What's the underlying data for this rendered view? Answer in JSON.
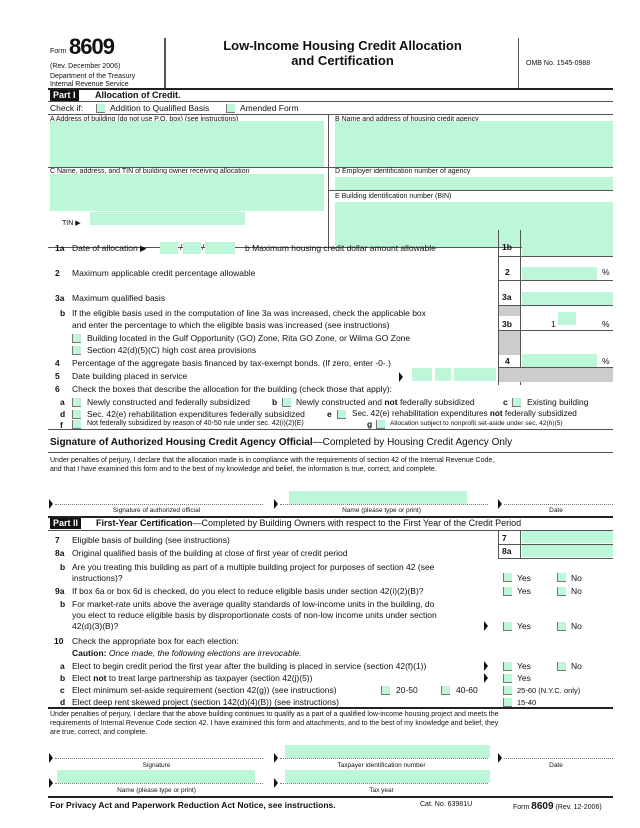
{
  "header": {
    "form_word": "Form",
    "form_number": "8609",
    "rev": "(Rev. December 2006)",
    "dept": "Department of the Treasury",
    "irs": "Internal Revenue Service",
    "title_line1": "Low-Income Housing Credit Allocation",
    "title_line2": "and Certification",
    "omb": "OMB No. 1545-0988"
  },
  "part1": {
    "tag": "Part I",
    "title": "Allocation of Credit.",
    "check_if": "Check if:",
    "check1": "Addition to Qualified Basis",
    "check2": "Amended Form",
    "A": "A  Address of building (do not use P.O. box) (see instructions)",
    "B": "B  Name and address of housing credit agency",
    "C": "C  Name, address, and TIN of building owner receiving allocation",
    "D": "D  Employer identification number of agency",
    "E": "E  Building identification number (BIN)",
    "tin": "TIN ▶",
    "l1a": "1a",
    "l1a_text": "Date of allocation ▶",
    "date_sep": "/",
    "l1b_text": "b  Maximum housing credit dollar amount allowable",
    "l1b": "1b",
    "l2": "2",
    "l2_text": "Maximum applicable credit percentage allowable",
    "pct": "%",
    "l3a": "3a",
    "l3a_text": "Maximum qualified basis",
    "l3b": "b",
    "l3b_text1": "If the eligible basis used in the computation of line 3a was increased, check the applicable box",
    "l3b_text2": "and enter the percentage to which the eligible basis was increased (see instructions)",
    "l3b_box": "3b",
    "l3b_prefix": "1",
    "l3b_opt1": "Building located in the Gulf Opportunity (GO) Zone, Rita GO Zone, or Wilma GO Zone",
    "l3b_opt2": "Section 42(d)(5)(C) high cost area provisions",
    "l4": "4",
    "l4_text": "Percentage of the aggregate basis financed by tax-exempt bonds. (If zero, enter -0-.)",
    "l5": "5",
    "l5_text": "Date building placed in service",
    "l6": "6",
    "l6_text": "Check the boxes that describe the allocation for the building (check those that apply):",
    "l6a": "Newly constructed and federally subsidized",
    "l6b_pre": "Newly constructed and ",
    "l6b_bold": "not",
    "l6b_post": " federally subsidized",
    "l6c": "Existing building",
    "l6d": "Sec. 42(e) rehabilitation expenditures federally subsidized",
    "l6e_pre": "Sec. 42(e) rehabilitation expenditures ",
    "l6e_bold": "not",
    "l6e_post": " federally subsidized",
    "l6f": "Not federally subsidized by reason of 40-50 rule under sec. 42(i)(2)(E)",
    "l6g": "Allocation subject to nonprofit set-aside under sec. 42(h)(5)",
    "letters": [
      "a",
      "b",
      "c",
      "d",
      "e",
      "f",
      "g"
    ]
  },
  "agency_sig": {
    "heading_bold": "Signature of Authorized Housing Credit Agency Official",
    "heading_rest": "—Completed by Housing Credit Agency Only",
    "perjury1": "Under penalties of perjury, I declare that the allocation made is in compliance with the requirements of section 42 of the Internal Revenue Code,",
    "perjury2": "and that I have examined this form and to the best of my knowledge and belief, the information is true, correct, and complete.",
    "sig_label": "Signature of authorized official",
    "name_label": "Name (please type or print)",
    "date_label": "Date"
  },
  "part2": {
    "tag": "Part II",
    "title_bold": "First-Year Certification",
    "title_rest": "—Completed by Building Owners with respect to the First Year of the Credit Period",
    "l7": "7",
    "l7_text": "Eligible basis of building (see instructions)",
    "l8a": "8a",
    "l8a_text": "Original qualified basis of the building at close of first year of credit period",
    "l8b": "b",
    "l8b_text1": "Are you treating this building as part of a multiple building project for purposes of section 42 (see",
    "l8b_text2": "instructions)?",
    "l9a": "9a",
    "l9a_text": "If box 6a or box 6d is checked, do you elect to reduce eligible basis under section 42(i)(2)(B)?",
    "l9b": "b",
    "l9b_text1": "For market-rate units above the average quality standards of low-income units in the building, do",
    "l9b_text2": "you elect to reduce eligible basis by disproportionate costs of non-low income units under section",
    "l9b_text3": "42(d)(3)(B)?",
    "yes": "Yes",
    "no": "No",
    "l10": "10",
    "l10_text": "Check the appropriate box for each election:",
    "caution_bold": "Caution:",
    "caution_rest": " Once made, the following elections are irrevocable.",
    "l10a": "a",
    "l10a_text": "Elect to begin credit period the first year after the building is placed in service (section 42(f)(1))",
    "l10b": "b",
    "l10b_pre": "Elect ",
    "l10b_bold": "not",
    "l10b_post": " to treat large partnership as taxpayer (section 42(j)(5))",
    "l10c": "c",
    "l10c_text": "Elect minimum set-aside requirement (section 42(g)) (see instructions)",
    "opt2050": "20-50",
    "opt4060": "40-60",
    "opt2560": "25-60 (N.Y.C. only)",
    "l10d": "d",
    "l10d_text": "Elect deep rent skewed project (section 142(d)(4)(B)) (see instructions)",
    "opt1540": "15-40",
    "perjury1": "Under penalties of perjury, I declare that the above building continues to qualify as a part of a qualified low-income housing project and meets the",
    "perjury2": "requirements of Internal Revenue Code section 42. I have examined this form and attachments, and to the best of my knowledge and belief, they",
    "perjury3": "are true, correct, and complete.",
    "sig_label": "Signature",
    "tin_label": "Taxpayer identification number",
    "date_label": "Date",
    "name_label": "Name (please type or print)",
    "taxyear_label": "Tax year"
  },
  "footer": {
    "privacy": "For Privacy Act and Paperwork Reduction Act Notice, see instructions.",
    "cat": "Cat. No. 63981U",
    "form_word": "Form",
    "form_number": "8609",
    "rev": "(Rev. 12-2006)"
  },
  "colors": {
    "field": "#bdf6d8",
    "bar": "#111111"
  }
}
